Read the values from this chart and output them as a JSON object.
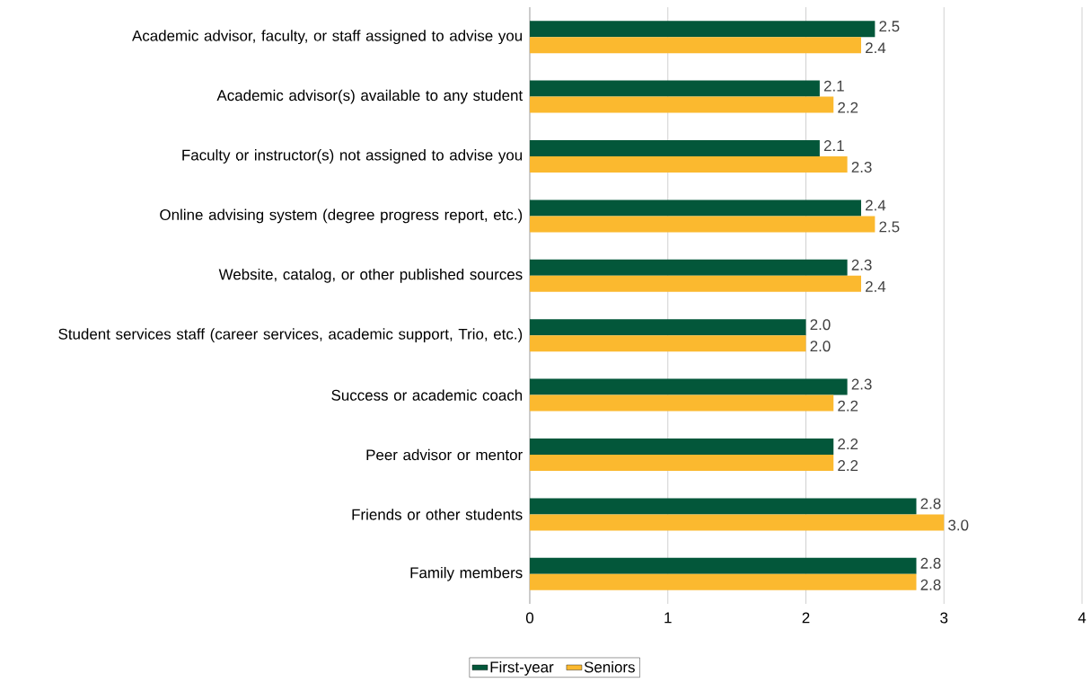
{
  "chart_data": {
    "type": "bar",
    "orientation": "horizontal",
    "categories": [
      "Academic advisor, faculty, or staff assigned to advise you",
      "Academic advisor(s) available to any student",
      "Faculty or instructor(s) not assigned to advise you",
      "Online advising system (degree progress report, etc.)",
      "Website, catalog, or other published sources",
      "Student services staff (career services, academic support, Trio, etc.)",
      "Success or academic coach",
      "Peer advisor or mentor",
      "Friends or other students",
      "Family members"
    ],
    "series": [
      {
        "name": "First-year",
        "color": "#03573a",
        "values": [
          2.5,
          2.1,
          2.1,
          2.4,
          2.3,
          2.0,
          2.3,
          2.2,
          2.8,
          2.8
        ],
        "value_labels": [
          "2.5",
          "2.1",
          "2.1",
          "2.4",
          "2.3",
          "2.0",
          "2.3",
          "2.2",
          "2.8",
          "2.8"
        ]
      },
      {
        "name": "Seniors",
        "color": "#fbb92f",
        "values": [
          2.4,
          2.2,
          2.3,
          2.5,
          2.4,
          2.0,
          2.2,
          2.2,
          3.0,
          2.8
        ],
        "value_labels": [
          "2.4",
          "2.2",
          "2.3",
          "2.5",
          "2.4",
          "2.0",
          "2.2",
          "2.2",
          "3.0",
          "2.8"
        ]
      }
    ],
    "xlim": [
      0,
      4
    ],
    "xticks": [
      0,
      1,
      2,
      3,
      4
    ],
    "grid": "x",
    "legend": "bottom"
  }
}
